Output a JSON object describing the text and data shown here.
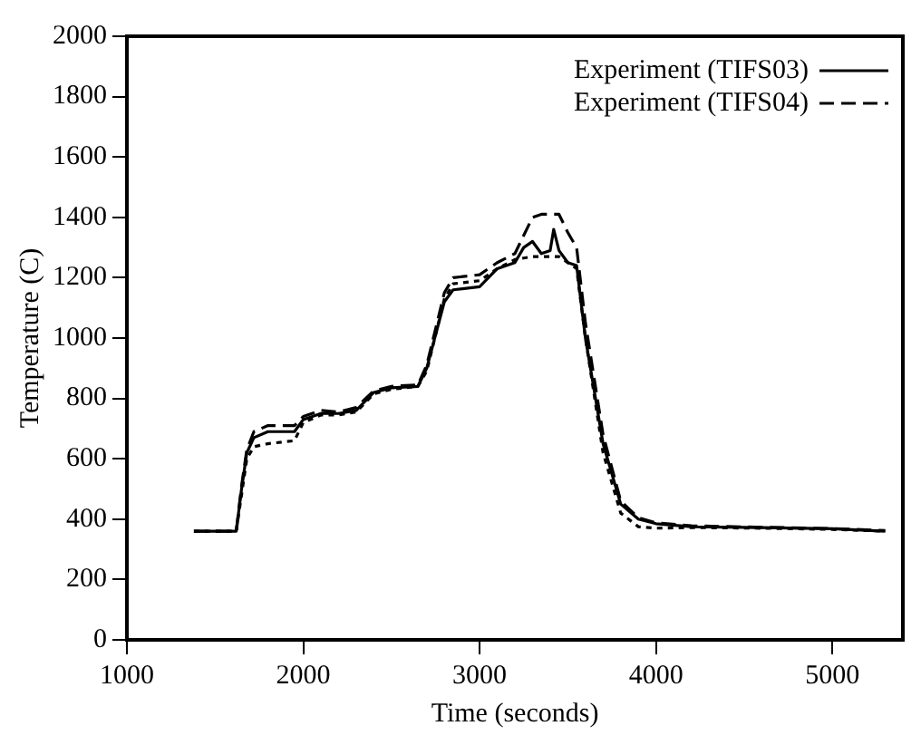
{
  "chart_data": {
    "type": "line",
    "xlabel": "Time (seconds)",
    "ylabel": "Temperature (C)",
    "xlim": [
      1000,
      5400
    ],
    "xticks": [
      1000,
      2000,
      3000,
      4000,
      5000
    ],
    "ylim": [
      0,
      2000
    ],
    "yticks": [
      0,
      200,
      400,
      600,
      800,
      1000,
      1200,
      1400,
      1600,
      1800,
      2000
    ],
    "grid": false,
    "legend": "top right",
    "marker": "none",
    "series": [
      {
        "name": "Experiment (TIFS03)",
        "color": "#000000",
        "line_style": "solid",
        "x": [
          1380,
          1620,
          1650,
          1680,
          1720,
          1800,
          1950,
          2000,
          2100,
          2200,
          2300,
          2400,
          2500,
          2650,
          2700,
          2800,
          2850,
          3000,
          3050,
          3100,
          3200,
          3250,
          3300,
          3350,
          3400,
          3420,
          3450,
          3500,
          3550,
          3600,
          3700,
          3800,
          3900,
          4000,
          4200,
          4600,
          5000,
          5300
        ],
        "values": [
          360,
          360,
          500,
          620,
          670,
          690,
          690,
          730,
          750,
          750,
          760,
          820,
          835,
          840,
          900,
          1120,
          1160,
          1170,
          1200,
          1230,
          1250,
          1300,
          1320,
          1280,
          1290,
          1360,
          1290,
          1250,
          1240,
          1000,
          650,
          450,
          400,
          385,
          375,
          372,
          368,
          360
        ]
      },
      {
        "name": "Experiment (TIFS04)",
        "color": "#000000",
        "line_style": "dashed",
        "x": [
          1380,
          1620,
          1650,
          1680,
          1720,
          1800,
          1950,
          2000,
          2100,
          2200,
          2300,
          2400,
          2500,
          2650,
          2700,
          2800,
          2850,
          3000,
          3100,
          3200,
          3300,
          3350,
          3450,
          3500,
          3550,
          3600,
          3700,
          3800,
          3900,
          4000,
          4200,
          4600,
          5000,
          5300
        ],
        "values": [
          360,
          360,
          510,
          630,
          690,
          710,
          710,
          740,
          760,
          755,
          770,
          825,
          840,
          845,
          910,
          1150,
          1200,
          1210,
          1250,
          1280,
          1400,
          1410,
          1410,
          1350,
          1300,
          1050,
          680,
          460,
          405,
          388,
          378,
          373,
          369,
          362
        ]
      },
      {
        "color": "#000000",
        "line_style": "dotted",
        "x": [
          1380,
          1620,
          1650,
          1680,
          1720,
          1800,
          1950,
          2000,
          2100,
          2200,
          2300,
          2400,
          2500,
          2650,
          2700,
          2800,
          2850,
          3000,
          3100,
          3200,
          3300,
          3450,
          3550,
          3600,
          3700,
          3800,
          3900,
          4000,
          4200,
          4600,
          5000,
          5300
        ],
        "values": [
          360,
          360,
          480,
          600,
          640,
          650,
          660,
          720,
          745,
          745,
          755,
          815,
          830,
          840,
          890,
          1130,
          1180,
          1190,
          1230,
          1260,
          1270,
          1270,
          1230,
          1000,
          620,
          420,
          375,
          370,
          372,
          370,
          366,
          360
        ]
      }
    ]
  }
}
